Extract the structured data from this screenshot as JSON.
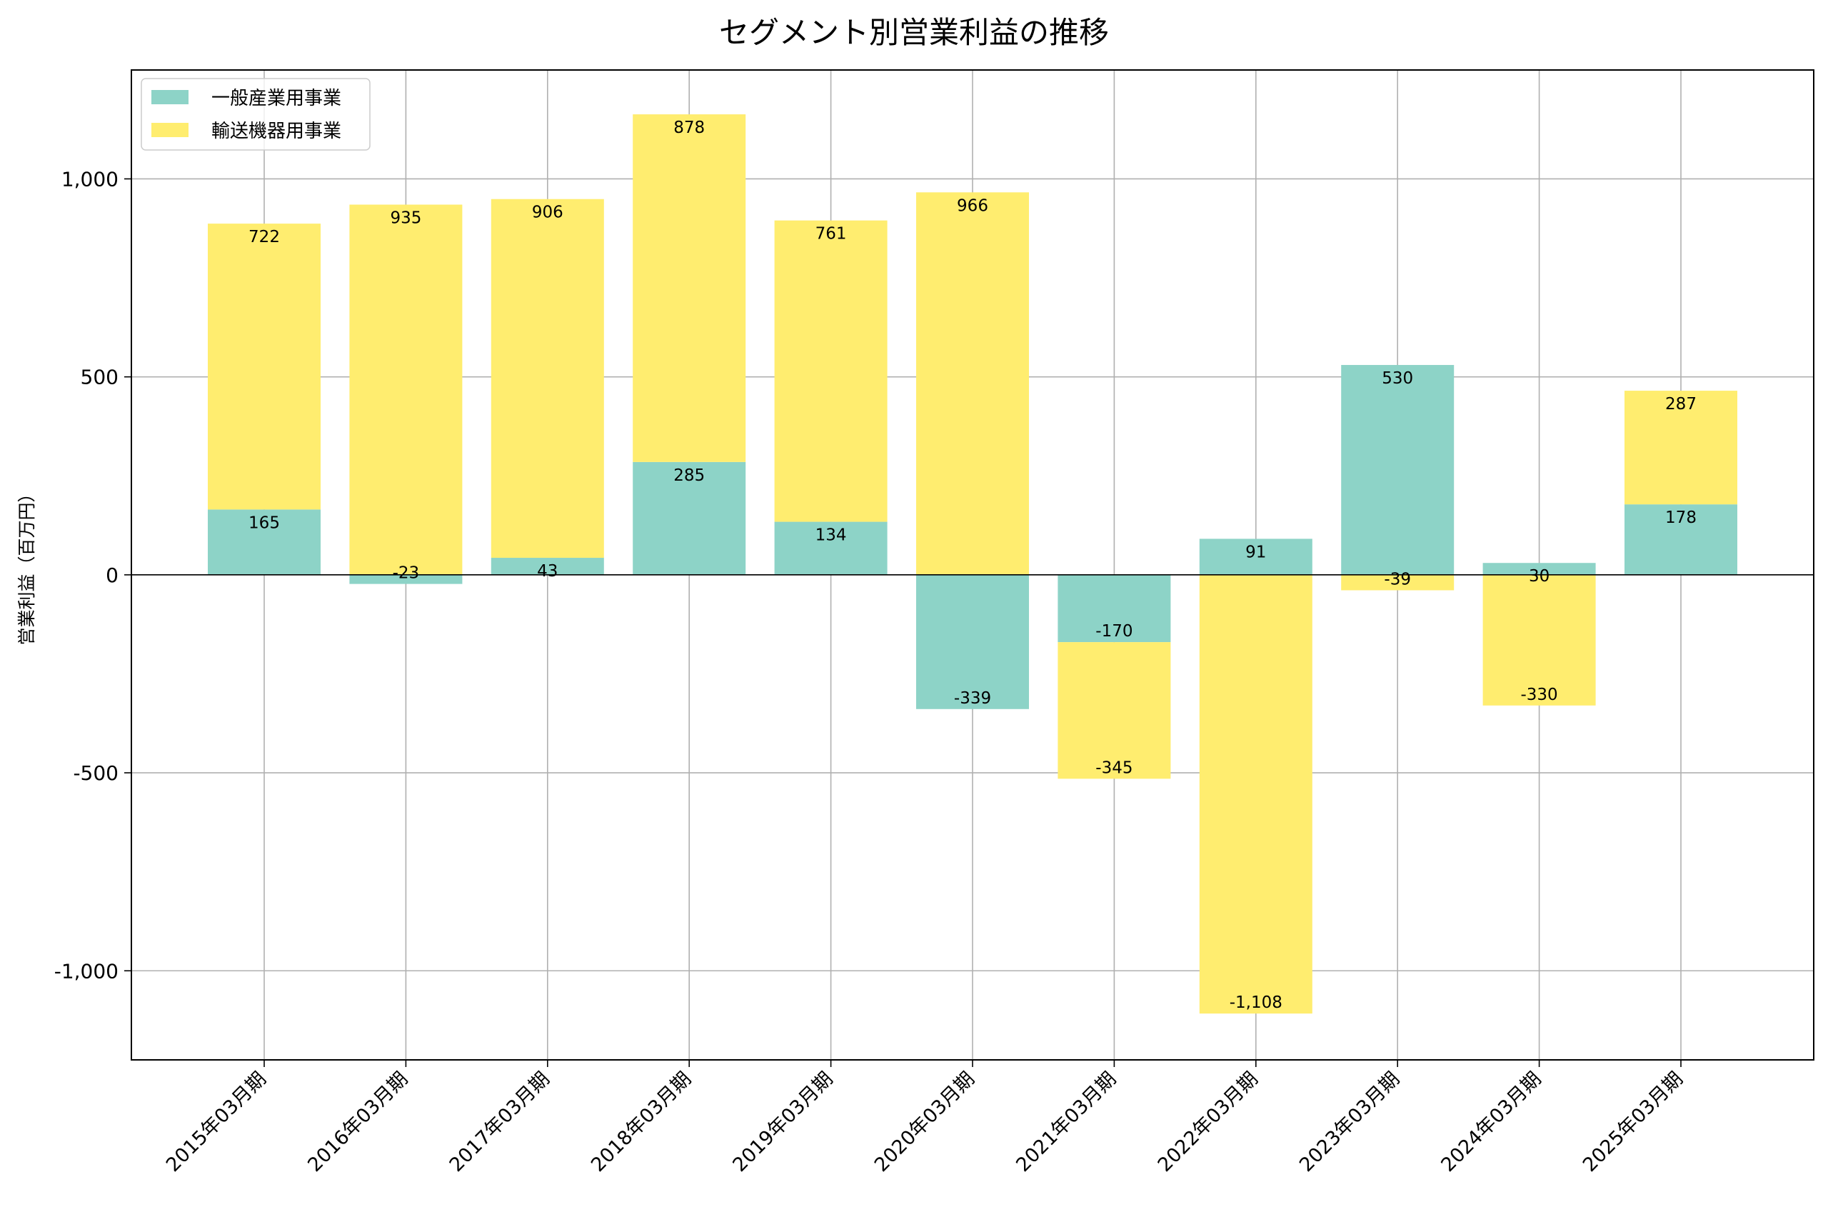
{
  "chart_data": {
    "type": "bar",
    "stacked": true,
    "title": "セグメント別営業利益の推移",
    "xlabel": "",
    "ylabel": "営業利益（百万円）",
    "categories": [
      "2015年03月期",
      "2016年03月期",
      "2017年03月期",
      "2018年03月期",
      "2019年03月期",
      "2020年03月期",
      "2021年03月期",
      "2022年03月期",
      "2023年03月期",
      "2024年03月期",
      "2025年03月期"
    ],
    "series": [
      {
        "name": "一般産業用事業",
        "color": "#8dd3c7",
        "values": [
          165,
          -23,
          43,
          285,
          134,
          -339,
          -170,
          91,
          530,
          30,
          178
        ],
        "labels": [
          "165",
          "-23",
          "43",
          "285",
          "134",
          "-339",
          "-170",
          "91",
          "530",
          "30",
          "178"
        ]
      },
      {
        "name": "輸送機器用事業",
        "color": "#ffed6f",
        "values": [
          722,
          935,
          906,
          878,
          761,
          966,
          -345,
          -1108,
          -39,
          -330,
          287
        ],
        "labels": [
          "722",
          "935",
          "906",
          "878",
          "761",
          "966",
          "-345",
          "-1,108",
          "-39",
          "-330",
          "287"
        ]
      }
    ],
    "ylim": [
      -1225,
      1275
    ],
    "yticks": [
      -1000,
      -500,
      0,
      500,
      1000
    ],
    "ytick_labels": [
      "-1,000",
      "-500",
      "0",
      "500",
      "1,000"
    ],
    "grid": true,
    "legend_position": "top-left"
  }
}
